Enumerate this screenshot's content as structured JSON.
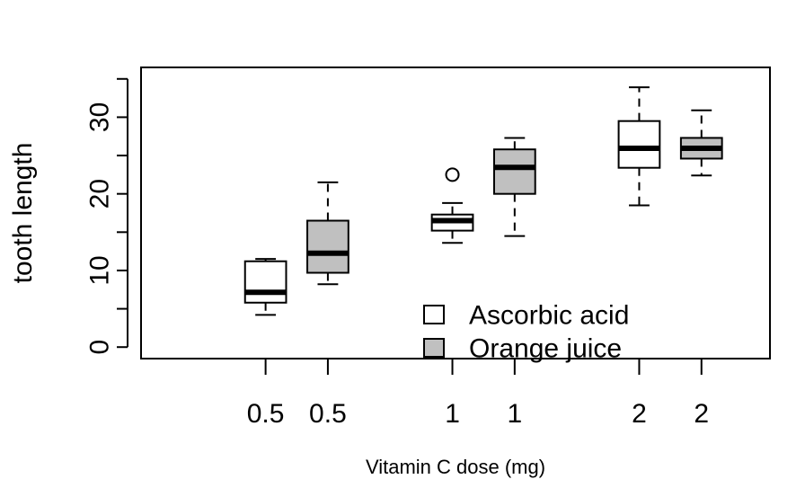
{
  "chart_data": {
    "type": "boxplot",
    "title": "",
    "xlabel": "Vitamin C dose (mg)",
    "ylabel": "tooth length",
    "ylim": [
      -1.5,
      36.5
    ],
    "yticks": [
      0,
      10,
      20,
      30
    ],
    "ytick_labels": [
      "0",
      "10",
      "20",
      "30"
    ],
    "grid": false,
    "legend_position": "bottom-center",
    "colors": {
      "Ascorbic acid": "#ffffff",
      "Orange juice": "#c0c0c0"
    },
    "series": [
      {
        "name": "Ascorbic acid",
        "color": "#ffffff"
      },
      {
        "name": "Orange juice",
        "color": "#c0c0c0"
      }
    ],
    "boxes": [
      {
        "label": "0.5",
        "series": "Ascorbic acid",
        "x": 2,
        "whisker_low": 4.2,
        "q1": 5.8,
        "median": 7.15,
        "q3": 11.2,
        "whisker_high": 11.5,
        "outliers": []
      },
      {
        "label": "0.5",
        "series": "Orange juice",
        "x": 3,
        "whisker_low": 8.2,
        "q1": 9.7,
        "median": 12.25,
        "q3": 16.5,
        "whisker_high": 21.5,
        "outliers": []
      },
      {
        "label": "1",
        "series": "Ascorbic acid",
        "x": 5,
        "whisker_low": 13.6,
        "q1": 15.2,
        "median": 16.5,
        "q3": 17.3,
        "whisker_high": 18.8,
        "outliers": [
          22.5
        ]
      },
      {
        "label": "1",
        "series": "Orange juice",
        "x": 6,
        "whisker_low": 14.5,
        "q1": 20.0,
        "median": 23.45,
        "q3": 25.8,
        "whisker_high": 27.3,
        "outliers": []
      },
      {
        "label": "2",
        "series": "Ascorbic acid",
        "x": 8,
        "whisker_low": 18.5,
        "q1": 23.4,
        "median": 25.95,
        "q3": 29.5,
        "whisker_high": 33.9,
        "outliers": []
      },
      {
        "label": "2",
        "series": "Orange juice",
        "x": 9,
        "whisker_low": 22.4,
        "q1": 24.6,
        "median": 25.95,
        "q3": 27.3,
        "whisker_high": 30.9,
        "outliers": []
      }
    ]
  }
}
